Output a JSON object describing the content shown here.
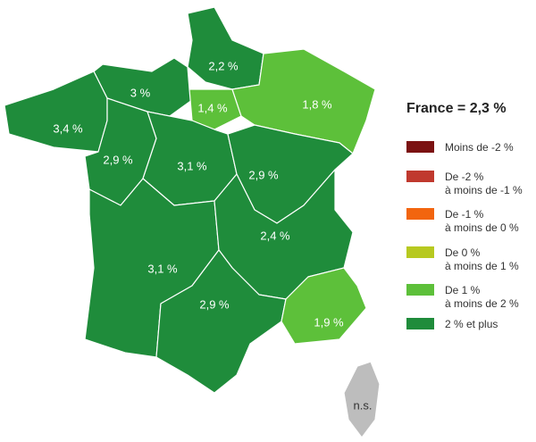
{
  "title": "France = 2,3 %",
  "legend": [
    {
      "lines": [
        "Moins de -2 %"
      ],
      "color": "#7b1212"
    },
    {
      "lines": [
        "De -2 %",
        "à moins de -1 %"
      ],
      "color": "#c0392e"
    },
    {
      "lines": [
        "De -1 %",
        "à moins de 0 %"
      ],
      "color": "#f2650f"
    },
    {
      "lines": [
        "De 0 %",
        "à moins de 1 %"
      ],
      "color": "#b7c920"
    },
    {
      "lines": [
        "De 1 %",
        "à moins de 2 %"
      ],
      "color": "#5dc03a"
    },
    {
      "lines": [
        "2 % et plus"
      ],
      "color": "#1f8c3b"
    }
  ],
  "regions": [
    {
      "label": "2,2 %",
      "color": "#1f8c3b"
    },
    {
      "label": "3 %",
      "color": "#1f8c3b"
    },
    {
      "label": "1,4 %",
      "color": "#5dc03a"
    },
    {
      "label": "1,8 %",
      "color": "#5dc03a"
    },
    {
      "label": "3,4 %",
      "color": "#1f8c3b"
    },
    {
      "label": "2,9 %",
      "color": "#1f8c3b"
    },
    {
      "label": "3,1 %",
      "color": "#1f8c3b"
    },
    {
      "label": "2,9 %",
      "color": "#1f8c3b"
    },
    {
      "label": "3,1 %",
      "color": "#1f8c3b"
    },
    {
      "label": "2,4 %",
      "color": "#1f8c3b"
    },
    {
      "label": "2,9 %",
      "color": "#1f8c3b"
    },
    {
      "label": "1,9 %",
      "color": "#5dc03a"
    },
    {
      "label": "n.s.",
      "color": "#bdbdbd"
    }
  ]
}
